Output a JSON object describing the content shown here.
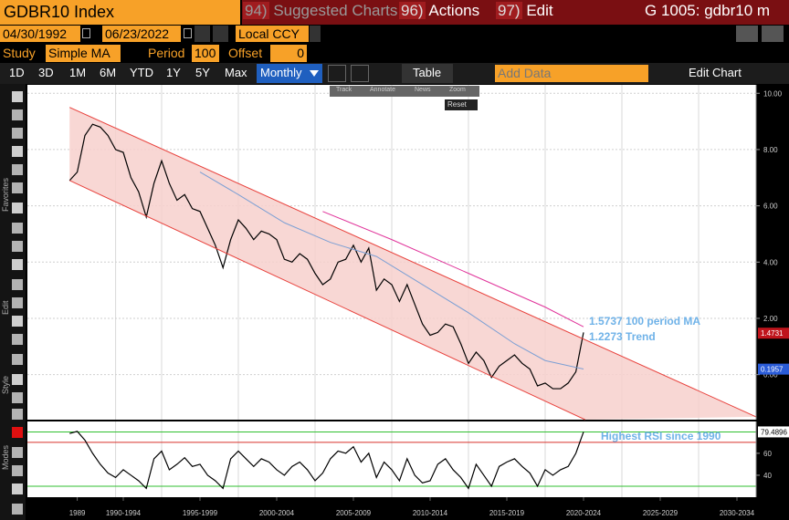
{
  "header": {
    "title": "GDBR10 Index",
    "menus": [
      {
        "num": "94)",
        "label": "Suggested Charts"
      },
      {
        "num": "96)",
        "label": "Actions"
      },
      {
        "num": "97)",
        "label": "Edit"
      }
    ],
    "right": "G 1005: gdbr10 m"
  },
  "date_row": {
    "start": "04/30/1992",
    "end": "06/23/2022",
    "currency": "Local CCY"
  },
  "study_row": {
    "study_label": "Study",
    "study": "Simple MA",
    "period_label": "Period",
    "period": "100",
    "offset_label": "Offset",
    "offset": "0"
  },
  "toolbar": {
    "ranges": [
      "1D",
      "3D",
      "1M",
      "6M",
      "YTD",
      "1Y",
      "5Y",
      "Max"
    ],
    "frequency": "Monthly",
    "table": "Table",
    "add_data": "Add Data",
    "edit_chart": "Edit Chart"
  },
  "chart_tools": {
    "items": [
      "Track",
      "Annotate",
      "News",
      "Zoom"
    ],
    "reset": "Reset"
  },
  "side_labels": [
    "Favorites",
    "Edit",
    "Style",
    "Modes"
  ],
  "chart_data": [
    {
      "type": "line",
      "x": [
        1989,
        1989.5,
        1990,
        1990.5,
        1991,
        1991.5,
        1992,
        1992.5,
        1993,
        1993.5,
        1994,
        1994.5,
        1995,
        1995.5,
        1996,
        1996.5,
        1997,
        1997.5,
        1998,
        1998.5,
        1999,
        1999.5,
        2000,
        2000.5,
        2001,
        2001.5,
        2002,
        2002.5,
        2003,
        2003.5,
        2004,
        2004.5,
        2005,
        2005.5,
        2006,
        2006.5,
        2007,
        2007.5,
        2008,
        2008.5,
        2009,
        2009.5,
        2010,
        2010.5,
        2011,
        2011.5,
        2012,
        2012.5,
        2013,
        2013.5,
        2014,
        2014.5,
        2015,
        2015.5,
        2016,
        2016.5,
        2017,
        2017.5,
        2018,
        2018.5,
        2019,
        2019.5,
        2020,
        2020.5,
        2021,
        2021.5,
        2022,
        2022.5
      ],
      "series": [
        {
          "color": "#000000",
          "values": [
            6.9,
            7.2,
            8.5,
            8.9,
            8.8,
            8.5,
            8.0,
            7.9,
            7.0,
            6.5,
            5.6,
            6.8,
            7.6,
            6.8,
            6.2,
            6.4,
            5.9,
            5.8,
            5.2,
            4.6,
            3.8,
            4.8,
            5.5,
            5.2,
            4.8,
            5.1,
            5.0,
            4.8,
            4.1,
            4.0,
            4.3,
            4.1,
            3.6,
            3.2,
            3.4,
            4.0,
            4.1,
            4.6,
            4.0,
            4.5,
            3.0,
            3.4,
            3.2,
            2.6,
            3.2,
            2.5,
            1.8,
            1.4,
            1.5,
            1.8,
            1.7,
            1.1,
            0.4,
            0.8,
            0.5,
            -0.1,
            0.3,
            0.5,
            0.7,
            0.4,
            0.2,
            -0.4,
            -0.3,
            -0.5,
            -0.5,
            -0.3,
            0.1,
            1.5
          ]
        },
        {
          "color": "#7b9fd4",
          "x": [
            1997.5,
            2000,
            2003,
            2006,
            2009,
            2012,
            2015,
            2018,
            2020,
            2022.5
          ],
          "values": [
            7.2,
            6.4,
            5.4,
            4.7,
            4.2,
            3.2,
            2.2,
            1.1,
            0.5,
            0.2
          ]
        },
        {
          "color": "#e0339a",
          "x": [
            2005.5,
            2010,
            2015,
            2020,
            2022.5
          ],
          "values": [
            5.8,
            4.8,
            3.6,
            2.4,
            1.7
          ]
        },
        {
          "color": "#e8413c",
          "x": [
            1989,
            2033.75
          ],
          "values": [
            9.5,
            -1.5
          ]
        },
        {
          "color": "#e8413c",
          "x": [
            1989,
            2022.6
          ],
          "values": [
            6.9,
            -1.6
          ]
        }
      ],
      "channel_fill": "#f7d0cc",
      "xlim": [
        1986.25,
        2033.75
      ],
      "xticks": [
        {
          "value": 1989.5,
          "label": "1989"
        },
        {
          "value": 1992.5,
          "label": "1990-1994"
        },
        {
          "value": 1997.5,
          "label": "1995-1999"
        },
        {
          "value": 2002.5,
          "label": "2000-2004"
        },
        {
          "value": 2007.5,
          "label": "2005-2009"
        },
        {
          "value": 2012.5,
          "label": "2010-2014"
        },
        {
          "value": 2017.5,
          "label": "2015-2019"
        },
        {
          "value": 2022.5,
          "label": "2020-2024"
        },
        {
          "value": 2027.5,
          "label": "2025-2029"
        },
        {
          "value": 2032.5,
          "label": "2030-2034"
        }
      ],
      "ylim": [
        -1.6,
        10.3
      ],
      "yticks": [
        {
          "value": 0,
          "label": "0.00"
        },
        {
          "value": 2,
          "label": "2.00"
        },
        {
          "value": 4,
          "label": "4.00"
        },
        {
          "value": 6,
          "label": "6.00"
        },
        {
          "value": 8,
          "label": "8.00"
        },
        {
          "value": 10,
          "label": "10.00"
        }
      ],
      "grid": true,
      "tags": [
        {
          "value": 1.4731,
          "color": "#c0141c"
        },
        {
          "value": 0.1957,
          "color": "#2a5bd7"
        }
      ],
      "annotations": [
        "1.5737 100 period MA",
        "1.2273 Trend"
      ]
    },
    {
      "type": "line",
      "x": [
        1989,
        1989.5,
        1990,
        1990.5,
        1991,
        1991.5,
        1992,
        1992.5,
        1993,
        1993.5,
        1994,
        1994.5,
        1995,
        1995.5,
        1996,
        1996.5,
        1997,
        1997.5,
        1998,
        1998.5,
        1999,
        1999.5,
        2000,
        2000.5,
        2001,
        2001.5,
        2002,
        2002.5,
        2003,
        2003.5,
        2004,
        2004.5,
        2005,
        2005.5,
        2006,
        2006.5,
        2007,
        2007.5,
        2008,
        2008.5,
        2009,
        2009.5,
        2010,
        2010.5,
        2011,
        2011.5,
        2012,
        2012.5,
        2013,
        2013.5,
        2014,
        2014.5,
        2015,
        2015.5,
        2016,
        2016.5,
        2017,
        2017.5,
        2018,
        2018.5,
        2019,
        2019.5,
        2020,
        2020.5,
        2021,
        2021.5,
        2022,
        2022.5
      ],
      "series": [
        {
          "color": "#000000",
          "values": [
            78,
            80,
            72,
            60,
            50,
            42,
            38,
            45,
            40,
            35,
            28,
            55,
            62,
            45,
            50,
            56,
            48,
            50,
            40,
            35,
            28,
            55,
            62,
            55,
            48,
            55,
            52,
            45,
            40,
            48,
            52,
            45,
            35,
            42,
            55,
            62,
            60,
            66,
            52,
            60,
            38,
            52,
            45,
            35,
            55,
            40,
            33,
            35,
            50,
            55,
            45,
            38,
            28,
            50,
            40,
            30,
            48,
            52,
            55,
            48,
            42,
            30,
            45,
            40,
            45,
            48,
            60,
            79.4896
          ]
        }
      ],
      "xlim": [
        1986.25,
        2033.75
      ],
      "ylim": [
        20,
        89
      ],
      "yticks": [
        40,
        60
      ],
      "hlines": [
        {
          "value": 79.4896,
          "color": "#2fbf2f"
        },
        {
          "value": 70,
          "color": "#d9302a"
        },
        {
          "value": 30,
          "color": "#2fbf2f"
        }
      ],
      "tags": [
        {
          "value": 79.4896,
          "color": "#ffffff"
        }
      ],
      "annotations": [
        "Highest RSI since 1990"
      ]
    }
  ]
}
